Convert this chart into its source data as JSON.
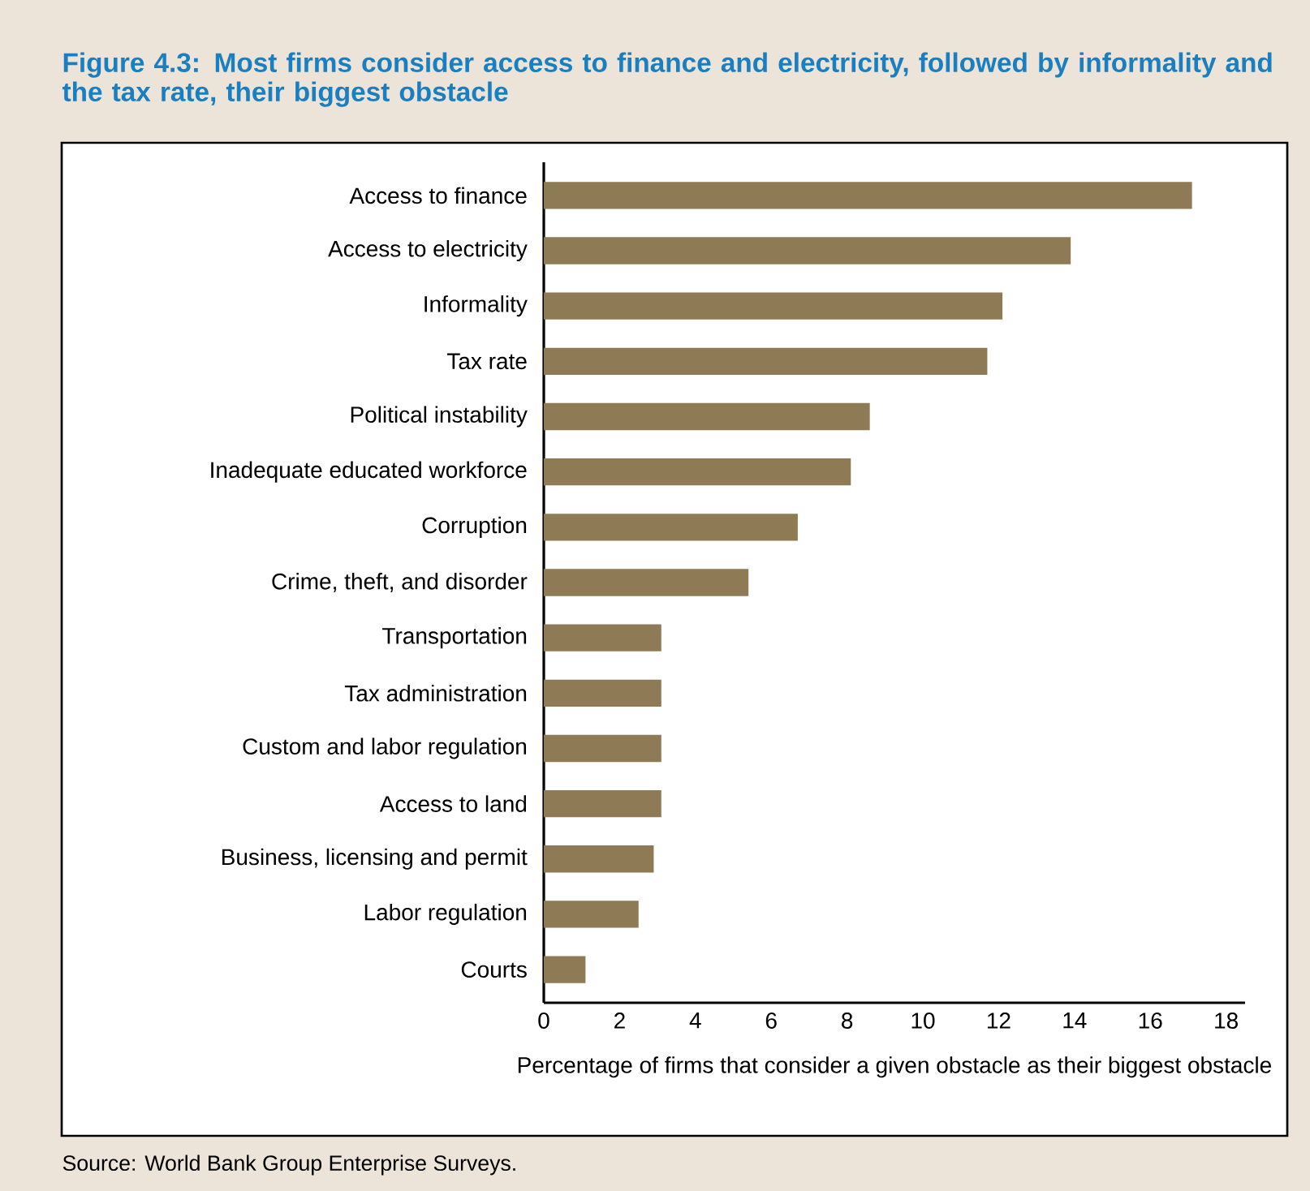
{
  "chart_data": {
    "type": "bar",
    "orientation": "horizontal",
    "title": "Figure 4.3: Most firms consider access to finance and electricity, followed by informality and the tax rate, their biggest obstacle",
    "categories": [
      "Access to finance",
      "Access to electricity",
      "Informality",
      "Tax rate",
      "Political instability",
      "Inadequate educated workforce",
      "Corruption",
      "Crime, theft, and disorder",
      "Transportation",
      "Tax administration",
      "Custom and labor regulation",
      "Access to land",
      "Business, licensing and permit",
      "Labor regulation",
      "Courts"
    ],
    "values": [
      17.1,
      13.9,
      12.1,
      11.7,
      8.6,
      8.1,
      6.7,
      5.4,
      3.1,
      3.1,
      3.1,
      3.1,
      2.9,
      2.5,
      1.1
    ],
    "color": "#8e7b55",
    "xlim": [
      0,
      18.5
    ],
    "xticks": [
      0,
      2,
      4,
      6,
      8,
      10,
      12,
      14,
      16,
      18
    ],
    "xlabel": "Percentage of firms that consider a given obstacle as their biggest obstacle",
    "annotations": [
      "Source: World Bank Group Enterprise Surveys."
    ]
  }
}
